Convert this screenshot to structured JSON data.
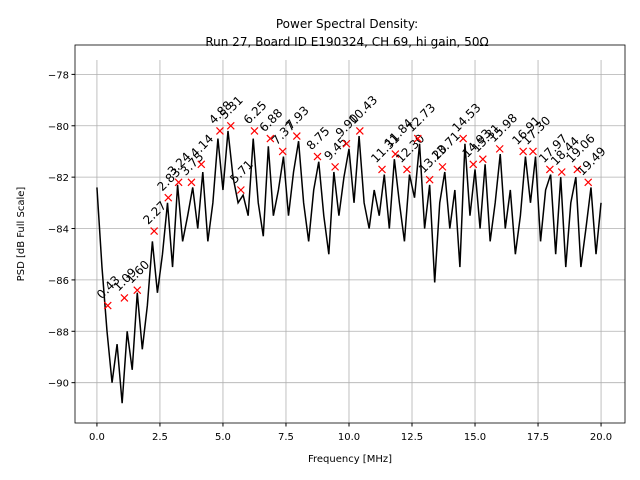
{
  "chart_data": {
    "type": "line",
    "title": [
      "Power Spectral Density:",
      "Run 27, Board ID E190324, CH 69, hi gain, 50Ω"
    ],
    "x_label": "Frequency [MHz]",
    "y_label": "PSD [dB Full Scale]",
    "grid": true,
    "xlim": [
      -0.87,
      20.95
    ],
    "ylim": [
      -91.57,
      -77.44
    ],
    "xticks": [
      {
        "value": 0,
        "label": "0.0"
      },
      {
        "value": 2.5,
        "label": "2.5"
      },
      {
        "value": 5,
        "label": "5.0"
      },
      {
        "value": 7.5,
        "label": "7.5"
      },
      {
        "value": 10,
        "label": "10.0"
      },
      {
        "value": 12.5,
        "label": "12.5"
      },
      {
        "value": 15,
        "label": "15.0"
      },
      {
        "value": 17.5,
        "label": "17.5"
      },
      {
        "value": 20,
        "label": "20.0"
      }
    ],
    "yticks": [
      {
        "value": -78,
        "label": "−78"
      },
      {
        "value": -80,
        "label": "−80"
      },
      {
        "value": -82,
        "label": "−82"
      },
      {
        "value": -84,
        "label": "−84"
      },
      {
        "value": -86,
        "label": "−86"
      },
      {
        "value": -88,
        "label": "−88"
      },
      {
        "value": -90,
        "label": "−90"
      }
    ],
    "series": [
      {
        "color": "#000000",
        "x": [
          0,
          0.2,
          0.4,
          0.6,
          0.8,
          1,
          1.2,
          1.4,
          1.6,
          1.8,
          2,
          2.2,
          2.4,
          2.6,
          2.8,
          3,
          3.2,
          3.4,
          3.6,
          3.8,
          4,
          4.2,
          4.4,
          4.6,
          4.8,
          5,
          5.2,
          5.4,
          5.6,
          5.8,
          6,
          6.2,
          6.4,
          6.6,
          6.8,
          7,
          7.2,
          7.4,
          7.6,
          7.8,
          8,
          8.2,
          8.4,
          8.6,
          8.8,
          9,
          9.2,
          9.4,
          9.6,
          9.8,
          10,
          10.2,
          10.4,
          10.6,
          10.8,
          11,
          11.2,
          11.4,
          11.6,
          11.8,
          12,
          12.2,
          12.4,
          12.6,
          12.8,
          13,
          13.2,
          13.4,
          13.6,
          13.8,
          14,
          14.2,
          14.4,
          14.6,
          14.8,
          15,
          15.2,
          15.4,
          15.6,
          15.8,
          16,
          16.2,
          16.4,
          16.6,
          16.8,
          17,
          17.2,
          17.4,
          17.6,
          17.8,
          18,
          18.2,
          18.4,
          18.6,
          18.8,
          19,
          19.2,
          19.4,
          19.6,
          19.8,
          20
        ],
        "values": [
          -82.4,
          -85.5,
          -88,
          -90,
          -88.5,
          -90.8,
          -88,
          -89.5,
          -86.5,
          -88.7,
          -87,
          -84.5,
          -86.5,
          -85,
          -83,
          -85.5,
          -82.3,
          -84.5,
          -83.5,
          -82.4,
          -84,
          -81.8,
          -84.5,
          -83,
          -80.5,
          -82.5,
          -80.2,
          -82,
          -83,
          -82.7,
          -83.5,
          -80.5,
          -83,
          -84.3,
          -80.8,
          -83.5,
          -82.5,
          -81.2,
          -83.5,
          -81.8,
          -80.6,
          -83,
          -84.5,
          -82.5,
          -81.4,
          -83.5,
          -85,
          -81.8,
          -83.5,
          -82,
          -80.9,
          -83,
          -80.4,
          -83,
          -84,
          -82.5,
          -83.5,
          -81.9,
          -84,
          -81.3,
          -83,
          -84.5,
          -81.9,
          -82.8,
          -80.7,
          -84,
          -82.3,
          -86.1,
          -83,
          -81.8,
          -84,
          -82.5,
          -85.5,
          -80.7,
          -83.5,
          -81.7,
          -84,
          -81.5,
          -84.5,
          -83,
          -81.1,
          -84,
          -82.5,
          -85,
          -83.5,
          -81.2,
          -83,
          -81.2,
          -84.5,
          -82.5,
          -81.9,
          -85,
          -82,
          -85.5,
          -83,
          -82,
          -85.5,
          -84,
          -82.4,
          -85,
          -83
        ]
      }
    ],
    "peaks": {
      "color": "#ff0000",
      "x": [
        0.43,
        1.09,
        1.6,
        2.27,
        2.83,
        3.24,
        3.75,
        4.14,
        4.88,
        5.31,
        5.71,
        6.25,
        6.88,
        7.37,
        7.93,
        8.75,
        9.45,
        9.9,
        10.43,
        11.31,
        11.84,
        12.3,
        12.73,
        13.2,
        13.71,
        14.53,
        14.93,
        15.31,
        15.98,
        16.91,
        17.3,
        17.97,
        18.44,
        19.06,
        19.49
      ],
      "x_labels": [
        "0.43",
        "1.09",
        "1.60",
        "2.27",
        "2.83",
        "3.24",
        "3.75",
        "4.14",
        "4.88",
        "5.31",
        "5.71",
        "6.25",
        "6.88",
        "7.37",
        "7.93",
        "8.75",
        "9.45",
        "9.90",
        "10.43",
        "11.31",
        "11.84",
        "12.30",
        "12.73",
        "13.20",
        "13.71",
        "14.53",
        "14.93",
        "15.31",
        "15.98",
        "16.91",
        "17.30",
        "17.97",
        "18.44",
        "19.06",
        "19.49"
      ],
      "values": [
        -87,
        -86.7,
        -86.4,
        -84.1,
        -82.8,
        -82.2,
        -82.2,
        -81.5,
        -80.2,
        -80,
        -82.5,
        -80.2,
        -80.5,
        -81,
        -80.4,
        -81.2,
        -81.6,
        -80.7,
        -80.2,
        -81.7,
        -81.1,
        -81.7,
        -80.5,
        -82.1,
        -81.6,
        -80.5,
        -81.5,
        -81.3,
        -80.9,
        -81,
        -81,
        -81.7,
        -81.8,
        -81.7,
        -82.2
      ]
    }
  }
}
